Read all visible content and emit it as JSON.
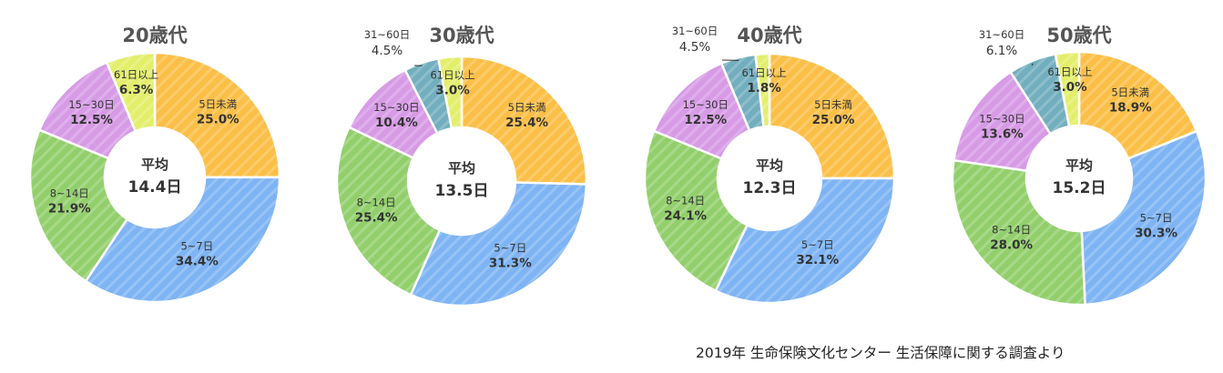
{
  "colors": {
    "5日未満": "#fbbf47",
    "5~7日": "#7eb4f4",
    "8~14日": "#92cf6c",
    "15~30日": "#d79be6",
    "31~60日": "#72aebe",
    "61日以上": "#e3ee6a"
  },
  "chart_data": [
    {
      "type": "pie",
      "title": "20歳代",
      "center_label": "平均",
      "center_value": "14.4日",
      "slices": [
        {
          "label": "5日未満",
          "value": 25.0
        },
        {
          "label": "5~7日",
          "value": 34.4
        },
        {
          "label": "8~14日",
          "value": 21.9
        },
        {
          "label": "15~30日",
          "value": 12.5
        },
        {
          "label": "61日以上",
          "value": 6.3
        }
      ]
    },
    {
      "type": "pie",
      "title": "30歳代",
      "center_label": "平均",
      "center_value": "13.5日",
      "slices": [
        {
          "label": "5日未満",
          "value": 25.4
        },
        {
          "label": "5~7日",
          "value": 31.3
        },
        {
          "label": "8~14日",
          "value": 25.4
        },
        {
          "label": "15~30日",
          "value": 10.4
        },
        {
          "label": "31~60日",
          "value": 4.5
        },
        {
          "label": "61日以上",
          "value": 3.0
        }
      ]
    },
    {
      "type": "pie",
      "title": "40歳代",
      "center_label": "平均",
      "center_value": "12.3日",
      "slices": [
        {
          "label": "5日未満",
          "value": 25.0
        },
        {
          "label": "5~7日",
          "value": 32.1
        },
        {
          "label": "8~14日",
          "value": 24.1
        },
        {
          "label": "15~30日",
          "value": 12.5
        },
        {
          "label": "31~60日",
          "value": 4.5
        },
        {
          "label": "61日以上",
          "value": 1.8
        }
      ]
    },
    {
      "type": "pie",
      "title": "50歳代",
      "center_label": "平均",
      "center_value": "15.2日",
      "slices": [
        {
          "label": "5日未満",
          "value": 18.9
        },
        {
          "label": "5~7日",
          "value": 30.3
        },
        {
          "label": "8~14日",
          "value": 28.0
        },
        {
          "label": "15~30日",
          "value": 13.6
        },
        {
          "label": "31~60日",
          "value": 6.1
        },
        {
          "label": "61日以上",
          "value": 3.0
        }
      ]
    }
  ],
  "source_note": "2019年 生命保険文化センター 生活保障に関する調査より"
}
